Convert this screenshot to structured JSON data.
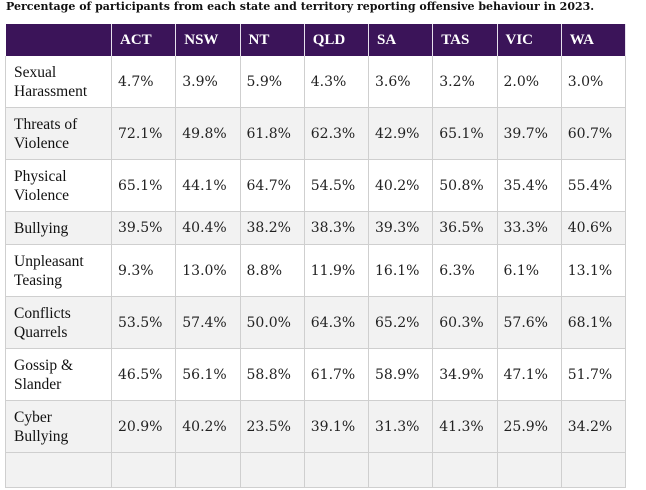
{
  "caption": "Percentage of participants from each state and territory reporting offensive behaviour in 2023.",
  "columns": [
    "",
    "ACT",
    "NSW",
    "NT",
    "QLD",
    "SA",
    "TAS",
    "VIC",
    "WA"
  ],
  "rows": [
    {
      "label": "Sexual\nHarassment",
      "values": [
        "4.7%",
        "3.9%",
        "5.9%",
        "4.3%",
        "3.6%",
        "3.2%",
        "2.0%",
        "3.0%"
      ]
    },
    {
      "label": "Threats of\nViolence",
      "values": [
        "72.1%",
        "49.8%",
        "61.8%",
        "62.3%",
        "42.9%",
        "65.1%",
        "39.7%",
        "60.7%"
      ]
    },
    {
      "label": "Physical\nViolence",
      "values": [
        "65.1%",
        "44.1%",
        "64.7%",
        "54.5%",
        "40.2%",
        "50.8%",
        "35.4%",
        "55.4%"
      ]
    },
    {
      "label": "Bullying",
      "values": [
        "39.5%",
        "40.4%",
        "38.2%",
        "38.3%",
        "39.3%",
        "36.5%",
        "33.3%",
        "40.6%"
      ]
    },
    {
      "label": "Unpleasant\nTeasing",
      "values": [
        "9.3%",
        "13.0%",
        "8.8%",
        "11.9%",
        "16.1%",
        "6.3%",
        "6.1%",
        "13.1%"
      ]
    },
    {
      "label": "Conflicts\nQuarrels",
      "values": [
        "53.5%",
        "57.4%",
        "50.0%",
        "64.3%",
        "65.2%",
        "60.3%",
        "57.6%",
        "68.1%"
      ]
    },
    {
      "label": "Gossip &\nSlander",
      "values": [
        "46.5%",
        "56.1%",
        "58.8%",
        "61.7%",
        "58.9%",
        "34.9%",
        "47.1%",
        "51.7%"
      ]
    },
    {
      "label": "Cyber\nBullying",
      "values": [
        "20.9%",
        "40.2%",
        "23.5%",
        "39.1%",
        "31.3%",
        "41.3%",
        "25.9%",
        "34.2%"
      ]
    }
  ]
}
